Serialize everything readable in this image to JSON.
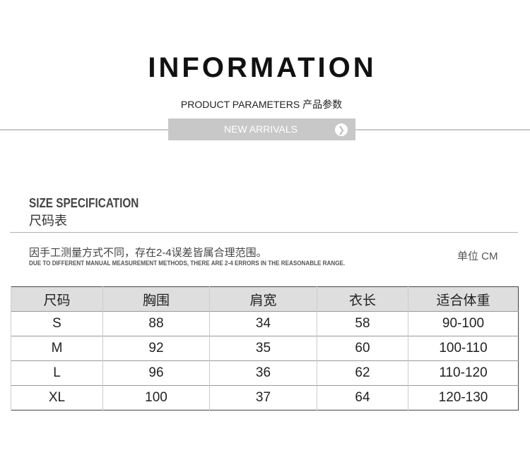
{
  "header": {
    "title": "INFORMATION",
    "subtitle": "PRODUCT PARAMETERS 产品参数",
    "banner_label": "NEW ARRIVALS",
    "banner_icon": "arrow-right-circle-icon"
  },
  "section": {
    "title_en": "SIZE SPECIFICATION",
    "title_cn": "尺码表",
    "note_cn": "因手工测量方式不同，存在2-4误差皆属合理范围。",
    "note_en": "DUE TO DIFFERENT MANUAL MEASUREMENT METHODS, THERE ARE 2-4 ERRORS IN THE REASONABLE RANGE.",
    "unit": "单位 CM"
  },
  "table": {
    "headers": [
      "尺码",
      "胸围",
      "肩宽",
      "衣长",
      "适合体重"
    ],
    "rows": [
      [
        "S",
        "88",
        "34",
        "58",
        "90-100"
      ],
      [
        "M",
        "92",
        "35",
        "60",
        "100-110"
      ],
      [
        "L",
        "96",
        "36",
        "62",
        "110-120"
      ],
      [
        "XL",
        "100",
        "37",
        "64",
        "120-130"
      ]
    ]
  }
}
